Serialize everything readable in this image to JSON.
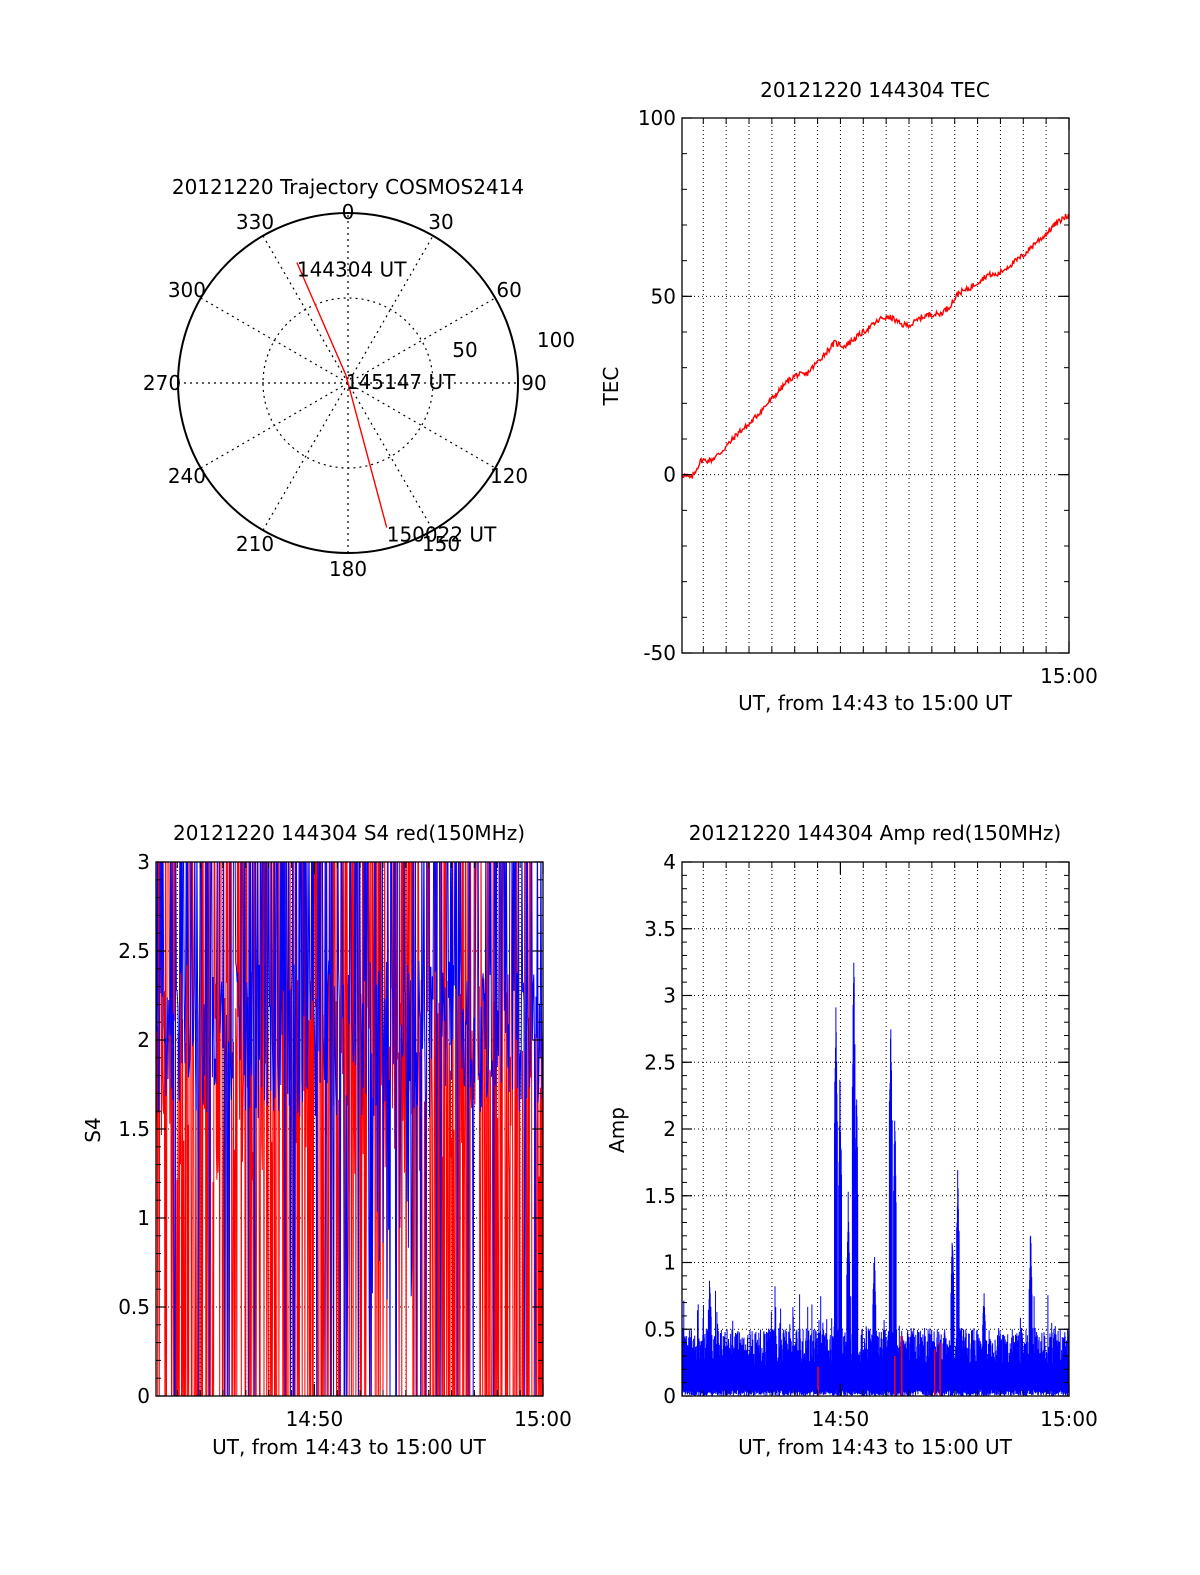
{
  "figure": {
    "background": "#ffffff",
    "colors": {
      "red": "#ff0000",
      "blue": "#0000ff",
      "axis": "#000000"
    }
  },
  "chart_data": [
    {
      "id": "trajectory",
      "type": "polar",
      "title": "20121220 Trajectory COSMOS2414",
      "azimuth_ticks": [
        0,
        30,
        60,
        90,
        120,
        150,
        180,
        210,
        240,
        270,
        300,
        330
      ],
      "radial_ticks": [
        50,
        100
      ],
      "rlim": [
        0,
        100
      ],
      "grid": true,
      "series": [
        {
          "color": "#ff0000",
          "points": [
            {
              "az": 337,
              "r": 77,
              "label": "144304 UT"
            },
            {
              "az": 345,
              "r": 5,
              "label": "145147 UT"
            },
            {
              "az": 165,
              "r": 88,
              "label": "150022 UT"
            }
          ]
        }
      ]
    },
    {
      "id": "tec",
      "type": "line",
      "title": "20121220 144304 TEC",
      "xlabel": "UT, from 14:43 to 15:00 UT",
      "ylabel": "TEC",
      "xlim": [
        14.7178,
        15.0
      ],
      "ylim": [
        -50,
        100
      ],
      "yticks": [
        -50,
        0,
        50,
        100
      ],
      "xticks": [
        {
          "value": 15.0,
          "label": "15:00"
        }
      ],
      "grid": true,
      "series": [
        {
          "color": "#ff0000",
          "x": [
            14.7178,
            14.7247,
            14.7317,
            14.7386,
            14.7456,
            14.7526,
            14.7595,
            14.7665,
            14.7734,
            14.7804,
            14.7874,
            14.7943,
            14.8013,
            14.8082,
            14.8152,
            14.8222,
            14.8291,
            14.8361,
            14.843,
            14.85,
            14.857,
            14.8639,
            14.8709,
            14.8778,
            14.8848,
            14.8918,
            14.8987,
            14.9057,
            14.9126,
            14.9196,
            14.9266,
            14.9335,
            14.9405,
            14.9474,
            14.9544,
            14.9614,
            14.9683,
            14.9753,
            14.9822,
            14.9892,
            14.9962,
            15.0
          ],
          "values": [
            0,
            -1,
            4,
            4,
            6,
            9,
            12,
            14,
            17,
            20,
            23,
            26,
            28,
            28,
            31,
            34,
            37,
            36,
            38,
            40,
            42,
            44,
            44,
            42,
            42,
            44,
            45,
            45,
            47,
            51,
            52,
            54,
            56,
            56,
            58,
            60,
            62,
            65,
            67,
            70,
            72,
            73
          ]
        }
      ]
    },
    {
      "id": "s4",
      "type": "line",
      "title": "20121220 144304 S4 red(150MHz)",
      "xlabel": "UT, from 14:43 to 15:00 UT",
      "ylabel": "S4",
      "xlim": [
        14.7178,
        15.0
      ],
      "ylim": [
        0,
        3
      ],
      "yticks": [
        0,
        0.5,
        1,
        1.5,
        2,
        2.5,
        3
      ],
      "xticks": [
        {
          "value": 14.8333,
          "label": "14:50"
        },
        {
          "value": 15.0,
          "label": "15:00"
        }
      ],
      "grid": true,
      "series": [
        {
          "color": "#ff0000",
          "style": "dense-spikes",
          "n": 700,
          "center": 1.8,
          "spread": 0.6,
          "dropout_rate": 0.35,
          "high_rate": 0.3
        },
        {
          "color": "#0000ff",
          "style": "dense-spikes",
          "n": 550,
          "center": 2.0,
          "spread": 0.45,
          "dropout_rate": 0.06,
          "high_rate": 0.3
        }
      ]
    },
    {
      "id": "amp",
      "type": "line",
      "title": "20121220 144304 Amp red(150MHz)",
      "xlabel": "UT, from 14:43 to 15:00 UT",
      "ylabel": "Amp",
      "xlim": [
        14.7178,
        15.0
      ],
      "ylim": [
        0,
        4
      ],
      "yticks": [
        0,
        0.5,
        1,
        1.5,
        2,
        2.5,
        3,
        3.5,
        4
      ],
      "xticks": [
        {
          "value": 14.8333,
          "label": "14:50"
        },
        {
          "value": 15.0,
          "label": "15:00"
        }
      ],
      "grid": true,
      "series": [
        {
          "color": "#0000ff",
          "style": "noise-with-peaks",
          "n": 1100,
          "base": 0.3,
          "peaks": [
            {
              "x": 14.83,
              "value": 3.2
            },
            {
              "x": 14.833,
              "value": 2.6
            },
            {
              "x": 14.839,
              "value": 1.55
            },
            {
              "x": 14.843,
              "value": 3.62
            },
            {
              "x": 14.845,
              "value": 2.5
            },
            {
              "x": 14.858,
              "value": 1.15
            },
            {
              "x": 14.87,
              "value": 3.17
            },
            {
              "x": 14.873,
              "value": 2.3
            },
            {
              "x": 14.915,
              "value": 1.25
            },
            {
              "x": 14.919,
              "value": 1.8
            },
            {
              "x": 14.938,
              "value": 0.8
            },
            {
              "x": 14.972,
              "value": 1.3
            },
            {
              "x": 14.738,
              "value": 0.92
            }
          ]
        },
        {
          "color": "#ff0000",
          "style": "sparse",
          "points": [
            {
              "x": 14.817,
              "value": 0.22
            },
            {
              "x": 14.873,
              "value": 0.3
            },
            {
              "x": 14.878,
              "value": 0.45
            },
            {
              "x": 14.902,
              "value": 0.35
            },
            {
              "x": 14.906,
              "value": 0.4
            }
          ]
        }
      ]
    }
  ]
}
